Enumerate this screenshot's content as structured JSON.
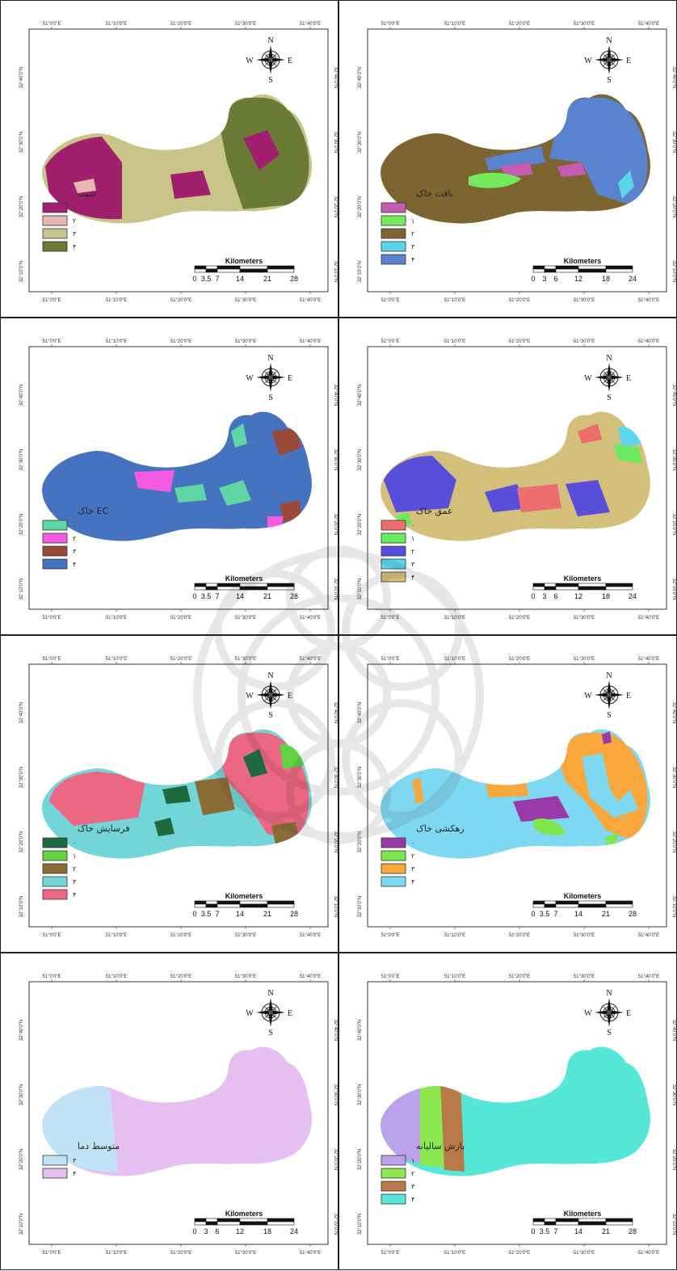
{
  "ticks": {
    "lon": [
      "51°0'0\"E",
      "51°10'0\"E",
      "51°20'0\"E",
      "51°30'0\"E",
      "51°40'0\"E"
    ],
    "lat": [
      "32°40'0\"N",
      "32°30'0\"N",
      "32°20'0\"N",
      "32°10'0\"N"
    ]
  },
  "compass": {
    "n": "N",
    "s": "S",
    "e": "E",
    "w": "W"
  },
  "scale_title": "Kilometers",
  "maps": [
    {
      "id": "slope",
      "legend_title": "شیب",
      "legend": [
        {
          "label": "۱",
          "color": "#a0206e"
        },
        {
          "label": "۲",
          "color": "#e7b6b0"
        },
        {
          "label": "۳",
          "color": "#c9c58a"
        },
        {
          "label": "۴",
          "color": "#6b7a35"
        }
      ],
      "scale": [
        "0",
        "3.5",
        "7",
        "14",
        "21",
        "28"
      ]
    },
    {
      "id": "soil-texture",
      "legend_title": "بافت خاک",
      "legend": [
        {
          "label": "۰",
          "color": "#c45cb3"
        },
        {
          "label": "۱",
          "color": "#74ea5c"
        },
        {
          "label": "۲",
          "color": "#7c6531"
        },
        {
          "label": "۳",
          "color": "#5ad5e8"
        },
        {
          "label": "۴",
          "color": "#5a83cf"
        }
      ],
      "scale": [
        "0",
        "3",
        "6",
        "12",
        "18",
        "24"
      ]
    },
    {
      "id": "soil-ec",
      "legend_title": "EC خاک",
      "legend": [
        {
          "label": "۰",
          "color": "#5fd6a5"
        },
        {
          "label": "۲",
          "color": "#f65ae0"
        },
        {
          "label": "۳",
          "color": "#9a4a3a"
        },
        {
          "label": "۴",
          "color": "#4673c0"
        }
      ],
      "scale": [
        "0",
        "3.5",
        "7",
        "14",
        "21",
        "28"
      ]
    },
    {
      "id": "soil-depth",
      "legend_title": "عمق خاک",
      "legend": [
        {
          "label": "۰",
          "color": "#ec6e6e"
        },
        {
          "label": "۱",
          "color": "#6bea5f"
        },
        {
          "label": "۲",
          "color": "#5a4fdb"
        },
        {
          "label": "۳",
          "color": "#5cd6ee"
        },
        {
          "label": "۴",
          "color": "#d4c07a"
        }
      ],
      "scale": [
        "0",
        "3",
        "6",
        "12",
        "18",
        "24"
      ]
    },
    {
      "id": "soil-erosion",
      "legend_title": "فرسایش خاک",
      "legend": [
        {
          "label": "۰",
          "color": "#1f6b3f"
        },
        {
          "label": "۱",
          "color": "#5fd343"
        },
        {
          "label": "۲",
          "color": "#8a6d36"
        },
        {
          "label": "۳",
          "color": "#73d5d8"
        },
        {
          "label": "۴",
          "color": "#ec6781"
        }
      ],
      "scale": [
        "0",
        "3.5",
        "7",
        "14",
        "21",
        "28"
      ]
    },
    {
      "id": "soil-drainage",
      "legend_title": "زهکشی خاک",
      "legend": [
        {
          "label": "۰",
          "color": "#9a3aa8"
        },
        {
          "label": "۲",
          "color": "#7fe650"
        },
        {
          "label": "۳",
          "color": "#f7a73b"
        },
        {
          "label": "۴",
          "color": "#7fd8f2"
        }
      ],
      "scale": [
        "0",
        "3.5",
        "7",
        "14",
        "21",
        "28"
      ]
    },
    {
      "id": "mean-temperature",
      "legend_title": "متوسط دما",
      "legend": [
        {
          "label": "۳",
          "color": "#c2e3f7"
        },
        {
          "label": "۴",
          "color": "#e6bff2"
        }
      ],
      "scale": [
        "0",
        "3",
        "6",
        "12",
        "18",
        "24"
      ]
    },
    {
      "id": "annual-precipitation",
      "legend_title": "بارش سالیانه",
      "legend": [
        {
          "label": "۱",
          "color": "#b9a2ea"
        },
        {
          "label": "۲",
          "color": "#8ce84e"
        },
        {
          "label": "۳",
          "color": "#b87a48"
        },
        {
          "label": "۴",
          "color": "#55e8d8"
        }
      ],
      "scale": [
        "0",
        "3.5",
        "7",
        "14",
        "21",
        "28"
      ]
    }
  ]
}
